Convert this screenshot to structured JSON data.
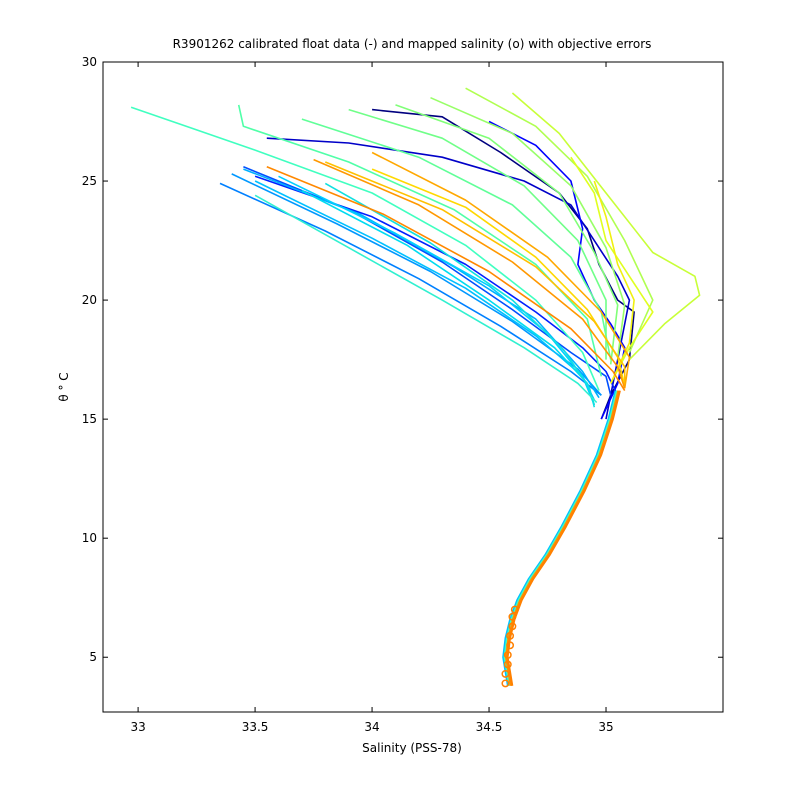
{
  "chart_data": {
    "type": "line",
    "title": "R3901262 calibrated float data (-) and mapped salinity (o) with objective errors",
    "xlabel": "Salinity (PSS-78)",
    "ylabel": "θ ° C",
    "xlim": [
      32.85,
      35.5
    ],
    "ylim": [
      2.7,
      30
    ],
    "xticks": [
      33,
      33.5,
      34,
      34.5,
      35
    ],
    "xtick_labels": [
      "33",
      "33.5",
      "34",
      "34.5",
      "35"
    ],
    "yticks": [
      5,
      10,
      15,
      20,
      25,
      30
    ],
    "ytick_labels": [
      "5",
      "10",
      "15",
      "20",
      "25",
      "30"
    ],
    "grid": false,
    "colormap": "jet (profile index)",
    "series": [
      {
        "color": "#00007f",
        "x": [
          34.0,
          34.3,
          34.55,
          34.8,
          34.92,
          34.97,
          35.05,
          35.12,
          35.1,
          35.02,
          34.98
        ],
        "y": [
          28.0,
          27.7,
          26.2,
          24.5,
          23.0,
          21.5,
          20.0,
          19.5,
          17.5,
          16.0,
          15.0
        ]
      },
      {
        "color": "#0000c8",
        "x": [
          33.55,
          33.9,
          34.3,
          34.65,
          34.85,
          34.95,
          35.05,
          35.1,
          35.05,
          35.0
        ],
        "y": [
          26.8,
          26.6,
          26.0,
          25.0,
          24.0,
          22.5,
          21.0,
          20.0,
          17.5,
          15.0
        ]
      },
      {
        "color": "#0000ff",
        "x": [
          34.5,
          34.7,
          34.85,
          34.9,
          34.88,
          34.95,
          35.02,
          35.08,
          35.05,
          34.98
        ],
        "y": [
          27.5,
          26.5,
          25.0,
          23.0,
          21.5,
          20.0,
          19.0,
          18.0,
          16.5,
          15.0
        ]
      },
      {
        "color": "#0020ff",
        "x": [
          33.5,
          34.0,
          34.4,
          34.7,
          34.9,
          35.0,
          35.05
        ],
        "y": [
          25.2,
          23.5,
          21.5,
          19.5,
          18.0,
          17.0,
          16.0
        ]
      },
      {
        "color": "#0050ff",
        "x": [
          33.45,
          33.9,
          34.3,
          34.6,
          34.85,
          35.0,
          35.02
        ],
        "y": [
          25.6,
          23.8,
          21.6,
          19.6,
          17.8,
          16.8,
          16.0
        ]
      },
      {
        "color": "#0080ff",
        "x": [
          33.35,
          33.8,
          34.2,
          34.55,
          34.85,
          34.98
        ],
        "y": [
          24.9,
          22.9,
          20.9,
          18.9,
          17.0,
          16.0
        ]
      },
      {
        "color": "#0098ff",
        "x": [
          33.4,
          33.85,
          34.25,
          34.6,
          34.88,
          34.98
        ],
        "y": [
          25.3,
          23.2,
          21.2,
          19.1,
          17.1,
          16.0
        ]
      },
      {
        "color": "#00b0ff",
        "x": [
          33.45,
          33.95,
          34.35,
          34.7,
          34.9,
          34.97
        ],
        "y": [
          25.5,
          23.6,
          21.4,
          19.2,
          17.0,
          15.9
        ]
      },
      {
        "color": "#00c0ff",
        "x": [
          33.5,
          34.0,
          34.4,
          34.7,
          34.9,
          34.95
        ],
        "y": [
          25.0,
          22.6,
          20.5,
          18.5,
          16.8,
          15.8
        ]
      },
      {
        "color": "#00d0ff",
        "x": [
          33.6,
          34.1,
          34.5,
          34.75,
          34.9,
          34.95
        ],
        "y": [
          25.2,
          22.8,
          20.6,
          18.6,
          16.8,
          15.6
        ]
      },
      {
        "color": "#00dcf0",
        "x": [
          33.7,
          34.15,
          34.5,
          34.78,
          34.92,
          34.95
        ],
        "y": [
          24.6,
          22.3,
          20.0,
          18.0,
          16.5,
          15.6
        ]
      },
      {
        "color": "#10e0e0",
        "x": [
          33.8,
          34.25,
          34.6,
          34.82,
          34.93,
          34.95
        ],
        "y": [
          24.9,
          22.4,
          20.0,
          17.9,
          16.3,
          15.5
        ]
      },
      {
        "color": "#30f0d0",
        "x": [
          33.5,
          33.9,
          34.3,
          34.65,
          34.88,
          34.96
        ],
        "y": [
          24.4,
          22.2,
          20.0,
          18.0,
          16.5,
          15.7
        ]
      },
      {
        "color": "#40ffc0",
        "x": [
          32.97,
          33.5,
          34.0,
          34.4,
          34.7,
          34.9,
          34.97
        ],
        "y": [
          28.1,
          26.3,
          24.5,
          22.3,
          20.0,
          17.8,
          16.2
        ]
      },
      {
        "color": "#50ffa8",
        "x": [
          33.43,
          33.45,
          33.9,
          34.35,
          34.7,
          34.92,
          34.98
        ],
        "y": [
          28.2,
          27.3,
          25.8,
          23.8,
          21.5,
          19.2,
          16.8
        ]
      },
      {
        "color": "#60ff98",
        "x": [
          33.7,
          34.2,
          34.6,
          34.85,
          34.98,
          35.02
        ],
        "y": [
          27.6,
          26.0,
          24.0,
          21.8,
          19.5,
          17.5
        ]
      },
      {
        "color": "#70ff88",
        "x": [
          33.9,
          34.3,
          34.65,
          34.88,
          35.0,
          35.0
        ],
        "y": [
          28.0,
          26.8,
          24.8,
          22.5,
          20.0,
          17.5
        ]
      },
      {
        "color": "#80ff78",
        "x": [
          34.1,
          34.5,
          34.8,
          34.95,
          35.05,
          35.02
        ],
        "y": [
          28.2,
          26.8,
          24.5,
          22.0,
          19.8,
          17.3
        ]
      },
      {
        "color": "#98ff68",
        "x": [
          34.25,
          34.6,
          34.85,
          35.0,
          35.08,
          35.05
        ],
        "y": [
          28.5,
          27.0,
          24.8,
          22.2,
          19.8,
          17.6
        ]
      },
      {
        "color": "#b0ff50",
        "x": [
          34.4,
          34.7,
          34.92,
          35.08,
          35.2,
          35.1
        ],
        "y": [
          28.9,
          27.3,
          25.2,
          22.5,
          20.0,
          17.8
        ]
      },
      {
        "color": "#c8ff38",
        "x": [
          34.6,
          34.8,
          35.0,
          35.2,
          35.38,
          35.4,
          35.25,
          35.1
        ],
        "y": [
          28.7,
          27.0,
          24.5,
          22.0,
          21.0,
          20.2,
          19.0,
          17.5
        ]
      },
      {
        "color": "#e0ff20",
        "x": [
          34.85,
          34.95,
          35.0,
          35.1,
          35.2,
          35.1,
          35.02
        ],
        "y": [
          26.0,
          24.5,
          22.5,
          21.0,
          19.5,
          18.0,
          16.5
        ]
      },
      {
        "color": "#f0f010",
        "x": [
          34.95,
          35.0,
          35.05,
          35.12,
          35.1,
          35.02
        ],
        "y": [
          25.0,
          23.5,
          21.5,
          20.0,
          18.2,
          16.5
        ]
      },
      {
        "color": "#ffd800",
        "x": [
          34.0,
          34.4,
          34.7,
          34.92,
          35.05,
          35.08
        ],
        "y": [
          25.5,
          23.9,
          21.8,
          19.6,
          17.6,
          16.4
        ]
      },
      {
        "color": "#ffc000",
        "x": [
          33.8,
          34.3,
          34.7,
          34.95,
          35.08,
          35.08
        ],
        "y": [
          25.8,
          23.8,
          21.4,
          19.1,
          17.2,
          16.3
        ]
      },
      {
        "color": "#ffa800",
        "x": [
          34.0,
          34.4,
          34.75,
          34.98,
          35.1,
          35.08
        ],
        "y": [
          26.2,
          24.2,
          21.8,
          19.5,
          17.6,
          16.3
        ]
      },
      {
        "color": "#ff9800",
        "x": [
          33.75,
          34.2,
          34.6,
          34.9,
          35.05,
          35.08
        ],
        "y": [
          25.9,
          24.0,
          21.6,
          19.2,
          17.2,
          16.3
        ]
      },
      {
        "color": "#ff8800",
        "x": [
          33.55,
          34.05,
          34.5,
          34.85,
          35.03,
          35.08
        ],
        "y": [
          25.6,
          23.6,
          21.2,
          18.8,
          17.0,
          16.2
        ]
      }
    ],
    "deep_profile": {
      "x": [
        35.05,
        35.02,
        34.97,
        34.9,
        34.82,
        34.75,
        34.68,
        34.63,
        34.6,
        34.58,
        34.57,
        34.58,
        34.59
      ],
      "y": [
        16.2,
        15.0,
        13.5,
        12.0,
        10.5,
        9.3,
        8.3,
        7.4,
        6.6,
        5.8,
        5.0,
        4.4,
        3.8
      ]
    },
    "deep_colors": [
      "#00c0ff",
      "#40ffc0",
      "#ff9000",
      "#ff8000"
    ],
    "mapped_markers": {
      "color": "#ff8000",
      "x": [
        34.57,
        34.57,
        34.58,
        34.58,
        34.59,
        34.59,
        34.6,
        34.6,
        34.61
      ],
      "y": [
        3.9,
        4.3,
        4.7,
        5.1,
        5.5,
        5.9,
        6.3,
        6.7,
        7.0
      ]
    }
  }
}
